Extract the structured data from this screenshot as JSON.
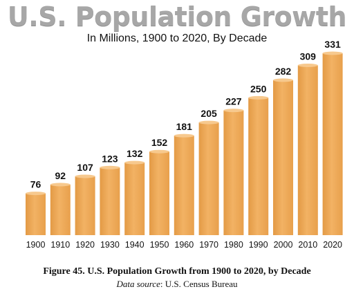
{
  "title": "U.S. Population Growth",
  "subtitle": "In Millions, 1900 to 2020, By Decade",
  "caption": "Figure 45.  U.S. Population Growth from 1900 to 2020, by Decade",
  "source_label": "Data source",
  "source_value": ":  U.S. Census Bureau",
  "colors": {
    "bar": "#efaa55",
    "bar_top": "#f7c98e",
    "bar_shadow": "#c97f2e",
    "text": "#111111"
  },
  "chart_data": {
    "type": "bar",
    "title": "U.S. Population Growth",
    "subtitle": "In Millions, 1900 to 2020, By Decade",
    "categories": [
      "1900",
      "1910",
      "1920",
      "1930",
      "1940",
      "1950",
      "1960",
      "1970",
      "1980",
      "1990",
      "2000",
      "2010",
      "2020"
    ],
    "values": [
      76,
      92,
      107,
      123,
      132,
      152,
      181,
      205,
      227,
      250,
      282,
      309,
      331
    ],
    "xlabel": "",
    "ylabel": "",
    "ylim": [
      0,
      331
    ],
    "grid": false,
    "legend": "none"
  }
}
